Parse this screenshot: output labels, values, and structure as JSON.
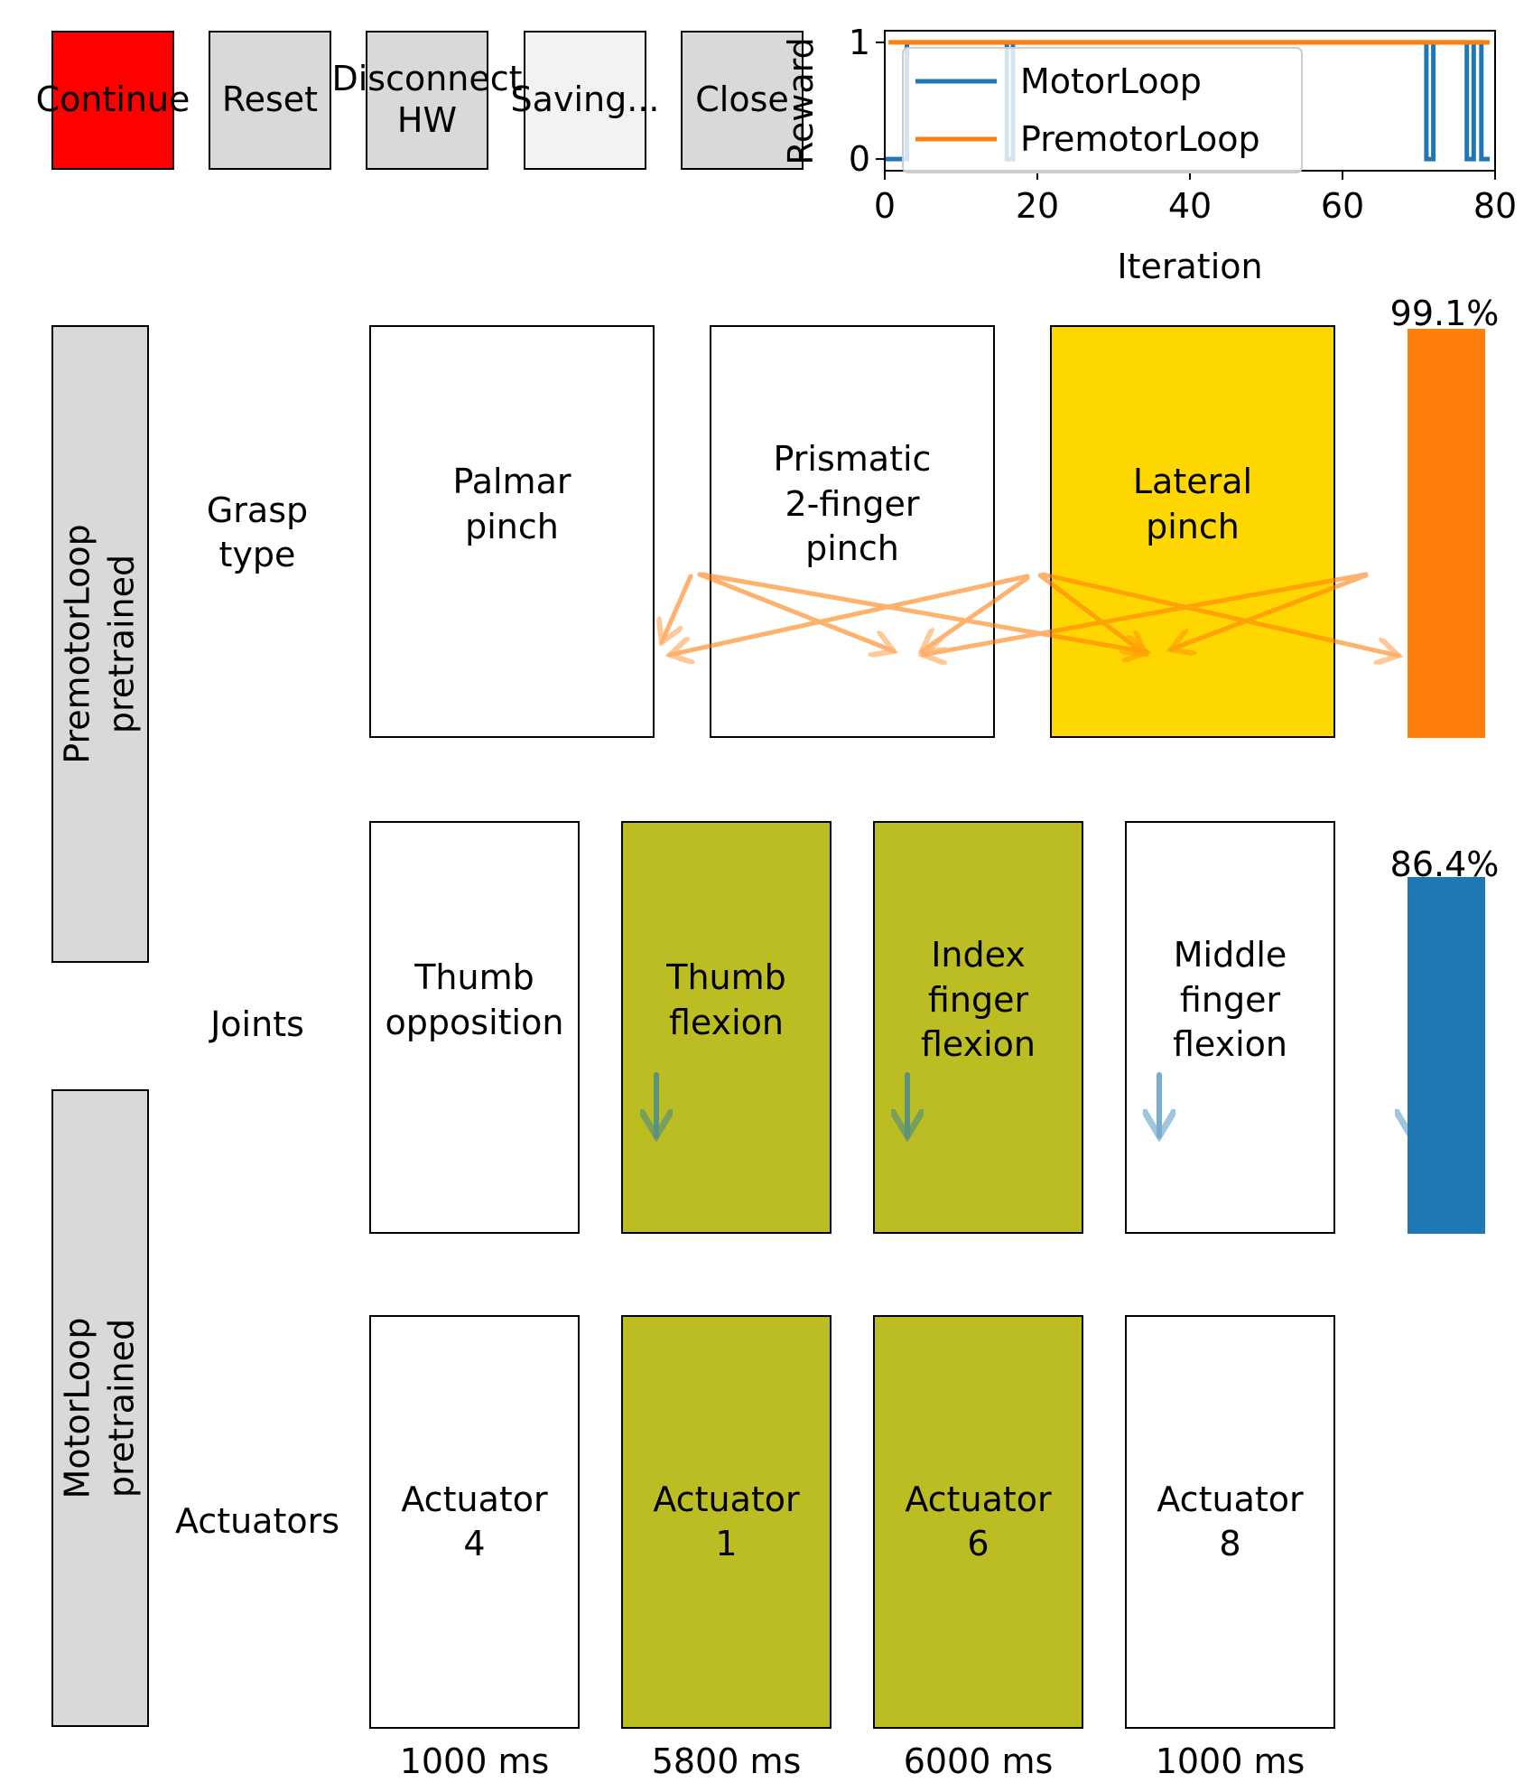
{
  "colors": {
    "continue_bg": "#ff0000",
    "button_bg": "#d9d9d9",
    "saving_bg": "#f2f2f2",
    "selected_grasp": "#ffd700",
    "active_joint": "#bcbd22",
    "motorloop": "#1f77b4",
    "premotorloop": "#ff7f0e",
    "panel_bg": "#d9d9d9"
  },
  "toolbar": {
    "continue": "Continue",
    "reset": "Reset",
    "disconnect": "Disconnect\nHW",
    "saving": "Saving...",
    "close": "Close"
  },
  "chart_data": {
    "type": "line",
    "xlabel": "Iteration",
    "ylabel": "Reward",
    "xlim": [
      0,
      80
    ],
    "ylim": [
      -0.1,
      1.1
    ],
    "xticks": [
      "0",
      "20",
      "40",
      "60",
      "80"
    ],
    "yticks": [
      "0",
      "1"
    ],
    "legend_position": "upper-left",
    "series": [
      {
        "name": "MotorLoop",
        "color": "#1f77b4",
        "x": [
          0,
          2.9,
          2.9,
          3.0,
          3.0,
          16.0,
          16.0,
          16.8,
          16.8,
          71.0,
          71.0,
          71.9,
          71.9,
          76.3,
          76.3,
          77.2,
          77.2,
          78.2,
          78.2,
          79.3
        ],
        "y": [
          0,
          0,
          1,
          1,
          1,
          1,
          0,
          0,
          1,
          1,
          0,
          0,
          1,
          1,
          0,
          0,
          1,
          1,
          0,
          0
        ]
      },
      {
        "name": "PremotorLoop",
        "color": "#ff7f0e",
        "x": [
          0.5,
          79.3
        ],
        "y": [
          1,
          1
        ]
      }
    ]
  },
  "sidebar": {
    "premotor_label": "PremotorLoop\npretrained",
    "motor_label": "MotorLoop\npretrained"
  },
  "rows": {
    "grasp_label": "Grasp\ntype",
    "joints_label": "Joints",
    "actuators_label": "Actuators"
  },
  "grasp_types": [
    {
      "label": "Palmar\npinch",
      "selected": false
    },
    {
      "label": "Prismatic\n2-finger\npinch",
      "selected": false
    },
    {
      "label": "Lateral\npinch",
      "selected": true
    }
  ],
  "joints": [
    {
      "label": "Thumb\nopposition",
      "active": false
    },
    {
      "label": "Thumb\nflexion",
      "active": true
    },
    {
      "label": "Index\nfinger\nflexion",
      "active": true
    },
    {
      "label": "Middle\nfinger\nflexion",
      "active": false
    }
  ],
  "actuators": [
    {
      "label": "Actuator\n4",
      "active": false,
      "duration": "1000 ms"
    },
    {
      "label": "Actuator\n1",
      "active": true,
      "duration": "5800 ms"
    },
    {
      "label": "Actuator\n6",
      "active": true,
      "duration": "6000 ms"
    },
    {
      "label": "Actuator\n8",
      "active": false,
      "duration": "1000 ms"
    }
  ],
  "confidence": {
    "premotor_value": 99.1,
    "premotor_label": "99.1%",
    "motor_value": 86.4,
    "motor_label": "86.4%"
  }
}
